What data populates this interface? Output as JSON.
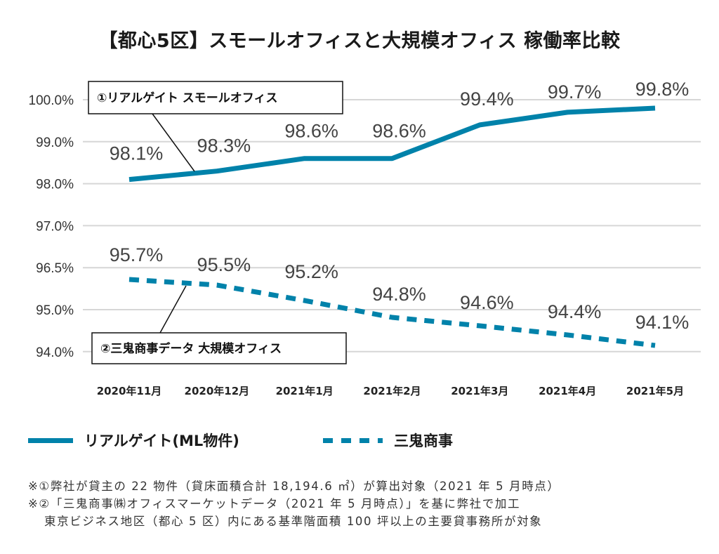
{
  "chart_data": {
    "type": "line",
    "title": "【都心5区】スモールオフィスと大規模オフィス 稼働率比較",
    "xlabel": "",
    "ylabel": "",
    "categories": [
      "2020年11月",
      "2020年12月",
      "2021年1月",
      "2021年2月",
      "2021年3月",
      "2021年4月",
      "2021年5月"
    ],
    "y_tick_labels": [
      "100.0%",
      "99.0%",
      "98.0%",
      "97.0%",
      "96.5%",
      "95.0%",
      "94.0%"
    ],
    "y_tick_values": [
      100.0,
      99.0,
      98.0,
      97.0,
      96.5,
      95.0,
      94.0
    ],
    "grid": true,
    "series": [
      {
        "name": "リアルゲイト(ML物件)",
        "style": "solid",
        "color": "#0082aa",
        "values": [
          98.1,
          98.3,
          98.6,
          98.6,
          99.4,
          99.7,
          99.8
        ],
        "labels": [
          "98.1%",
          "98.3%",
          "98.6%",
          "98.6%",
          "99.4%",
          "99.7%",
          "99.8%"
        ],
        "callout": "①リアルゲイト スモールオフィス"
      },
      {
        "name": "三鬼商事",
        "style": "dotted",
        "color": "#0082aa",
        "values": [
          95.7,
          95.5,
          95.2,
          94.8,
          94.6,
          94.4,
          94.1
        ],
        "labels": [
          "95.7%",
          "95.5%",
          "95.2%",
          "94.8%",
          "94.6%",
          "94.4%",
          "94.1%"
        ],
        "callout": "②三鬼商事データ 大規模オフィス"
      }
    ],
    "legend_position": "bottom"
  },
  "legend": {
    "solid_label": "リアルゲイト(ML物件)",
    "dotted_label": "三鬼商事"
  },
  "notes": [
    "※①弊社が貸主の 22 物件（貸床面積合計 18,194.6 ㎡）が算出対象（2021 年 5 月時点）",
    "※②「三鬼商事㈱オフィスマーケットデータ（2021 年 5 月時点）」を基に弊社で加工",
    "東京ビジネス地区（都心 5 区）内にある基準階面積 100 坪以上の主要貸事務所が対象"
  ]
}
